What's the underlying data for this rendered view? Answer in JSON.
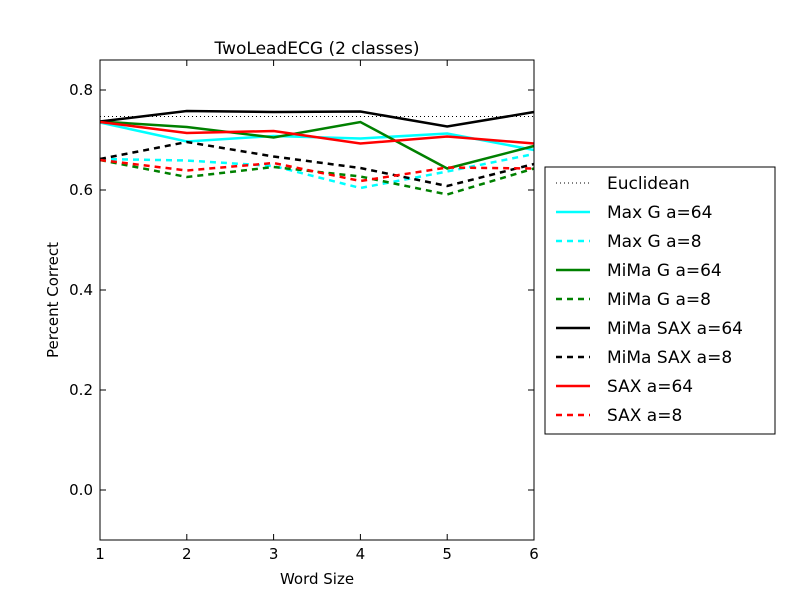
{
  "chart_data": {
    "type": "line",
    "title": "TwoLeadECG (2 classes)",
    "xlabel": "Word Size",
    "ylabel": "Percent Correct",
    "xlim": [
      1,
      6
    ],
    "ylim": [
      -0.1,
      0.86
    ],
    "xticks": [
      1,
      2,
      3,
      4,
      5,
      6
    ],
    "xtick_labels": [
      "1",
      "2",
      "3",
      "4",
      "5",
      "6"
    ],
    "yticks": [
      0.0,
      0.2,
      0.4,
      0.6,
      0.8
    ],
    "ytick_labels": [
      "0.0",
      "0.2",
      "0.4",
      "0.6",
      "0.8"
    ],
    "grid": false,
    "legend_position": "outside-right",
    "x": [
      1,
      2,
      3,
      4,
      5,
      6
    ],
    "series": [
      {
        "name": "Euclidean",
        "color": "#000000",
        "dash": "dotted",
        "values": [
          0.747,
          0.747,
          0.747,
          0.747,
          0.747,
          0.747
        ]
      },
      {
        "name": "Max G a=64",
        "color": "#00ffff",
        "dash": "solid",
        "values": [
          0.735,
          0.697,
          0.708,
          0.703,
          0.713,
          0.68
        ]
      },
      {
        "name": "Max G a=8",
        "color": "#00ffff",
        "dash": "dashed",
        "values": [
          0.662,
          0.659,
          0.648,
          0.604,
          0.637,
          0.672
        ]
      },
      {
        "name": "MiMa G a=64",
        "color": "#008000",
        "dash": "solid",
        "values": [
          0.737,
          0.726,
          0.705,
          0.736,
          0.643,
          0.688
        ]
      },
      {
        "name": "MiMa G a=8",
        "color": "#008000",
        "dash": "dashed",
        "values": [
          0.66,
          0.626,
          0.646,
          0.627,
          0.591,
          0.643
        ]
      },
      {
        "name": "MiMa SAX a=64",
        "color": "#000000",
        "dash": "solid",
        "values": [
          0.737,
          0.758,
          0.756,
          0.757,
          0.727,
          0.756
        ]
      },
      {
        "name": "MiMa SAX a=8",
        "color": "#000000",
        "dash": "dashed",
        "values": [
          0.662,
          0.696,
          0.667,
          0.644,
          0.608,
          0.652
        ]
      },
      {
        "name": "SAX a=64",
        "color": "#ff0000",
        "dash": "solid",
        "values": [
          0.736,
          0.714,
          0.718,
          0.693,
          0.707,
          0.693
        ]
      },
      {
        "name": "SAX a=8",
        "color": "#ff0000",
        "dash": "dashed",
        "values": [
          0.66,
          0.639,
          0.654,
          0.618,
          0.645,
          0.643
        ]
      }
    ]
  }
}
